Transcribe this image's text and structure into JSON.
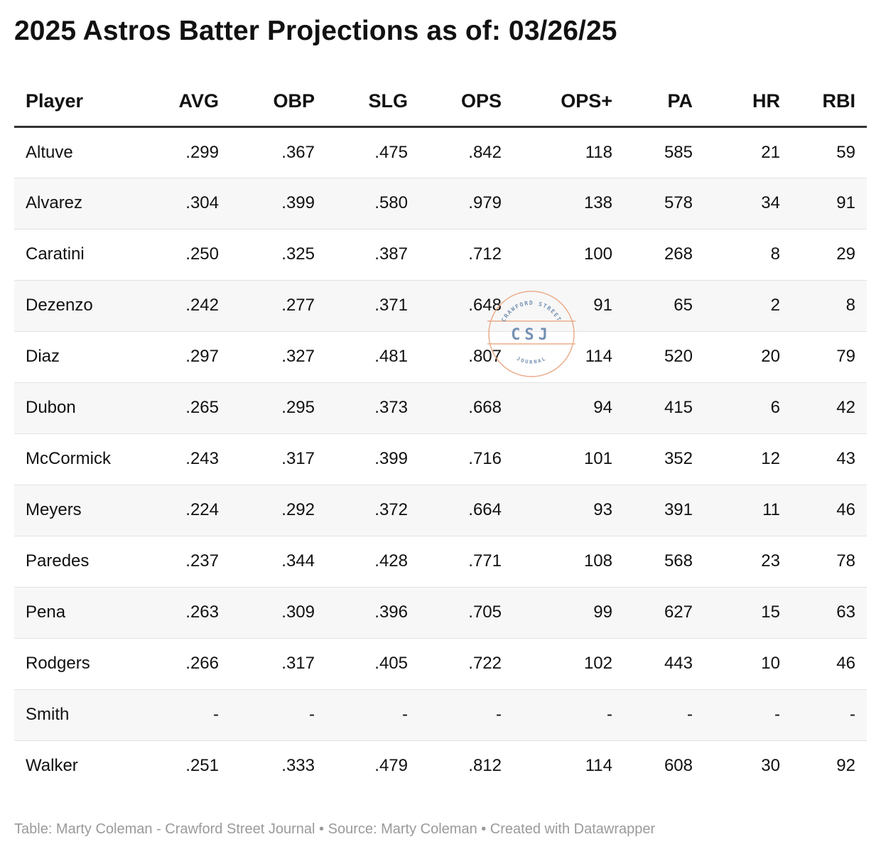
{
  "title": "2025 Astros Batter Projections as of: 03/26/25",
  "chart_data": {
    "type": "table",
    "title": "2025 Astros Batter Projections as of: 03/26/25",
    "columns": [
      "Player",
      "AVG",
      "OBP",
      "SLG",
      "OPS",
      "OPS+",
      "PA",
      "HR",
      "RBI"
    ],
    "rows": [
      [
        "Altuve",
        ".299",
        ".367",
        ".475",
        ".842",
        "118",
        "585",
        "21",
        "59"
      ],
      [
        "Alvarez",
        ".304",
        ".399",
        ".580",
        ".979",
        "138",
        "578",
        "34",
        "91"
      ],
      [
        "Caratini",
        ".250",
        ".325",
        ".387",
        ".712",
        "100",
        "268",
        "8",
        "29"
      ],
      [
        "Dezenzo",
        ".242",
        ".277",
        ".371",
        ".648",
        "91",
        "65",
        "2",
        "8"
      ],
      [
        "Diaz",
        ".297",
        ".327",
        ".481",
        ".807",
        "114",
        "520",
        "20",
        "79"
      ],
      [
        "Dubon",
        ".265",
        ".295",
        ".373",
        ".668",
        "94",
        "415",
        "6",
        "42"
      ],
      [
        "McCormick",
        ".243",
        ".317",
        ".399",
        ".716",
        "101",
        "352",
        "12",
        "43"
      ],
      [
        "Meyers",
        ".224",
        ".292",
        ".372",
        ".664",
        "93",
        "391",
        "11",
        "46"
      ],
      [
        "Paredes",
        ".237",
        ".344",
        ".428",
        ".771",
        "108",
        "568",
        "23",
        "78"
      ],
      [
        "Pena",
        ".263",
        ".309",
        ".396",
        ".705",
        "99",
        "627",
        "15",
        "63"
      ],
      [
        "Rodgers",
        ".266",
        ".317",
        ".405",
        ".722",
        "102",
        "443",
        "10",
        "46"
      ],
      [
        "Smith",
        "-",
        "-",
        "-",
        "-",
        "-",
        "-",
        "-",
        "-"
      ],
      [
        "Walker",
        ".251",
        ".333",
        ".479",
        ".812",
        "114",
        "608",
        "30",
        "92"
      ]
    ]
  },
  "watermark": {
    "top_text": "CRAWFORD STREET",
    "mark": "CSJ",
    "bottom_text": "JOURNAL",
    "color": "#e8a07a",
    "text_color": "#5f7fa6"
  },
  "footer": "Table: Marty Coleman - Crawford Street Journal • Source: Marty Coleman • Created with Datawrapper"
}
